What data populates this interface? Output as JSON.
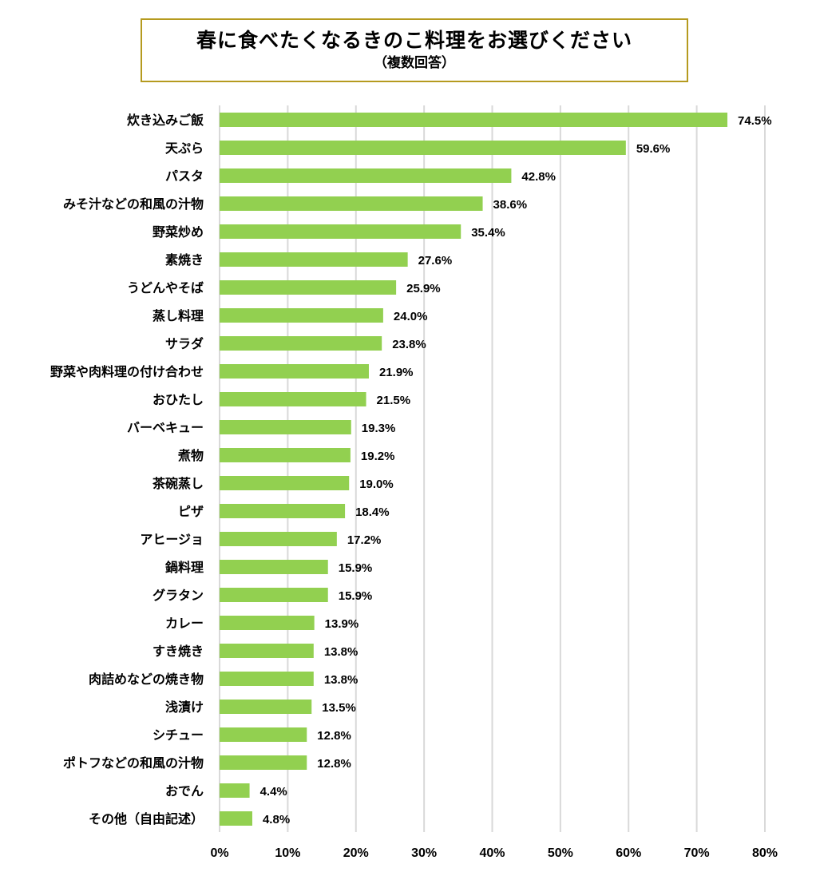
{
  "title": "春に食べたくなるきのこ料理をお選びください",
  "subtitle": "（複数回答）",
  "colors": {
    "bar": "#92d050",
    "grid": "#d9d9d9",
    "title_border": "#b59a1f"
  },
  "chart_data": {
    "type": "bar",
    "orientation": "horizontal",
    "categories": [
      "炊き込みご飯",
      "天ぷら",
      "パスタ",
      "みそ汁などの和風の汁物",
      "野菜炒め",
      "素焼き",
      "うどんやそば",
      "蒸し料理",
      "サラダ",
      "野菜や肉料理の付け合わせ",
      "おひたし",
      "バーベキュー",
      "煮物",
      "茶碗蒸し",
      "ピザ",
      "アヒージョ",
      "鍋料理",
      "グラタン",
      "カレー",
      "すき焼き",
      "肉詰めなどの焼き物",
      "浅漬け",
      "シチュー",
      "ポトフなどの和風の汁物",
      "おでん",
      "その他（自由記述）"
    ],
    "values": [
      74.5,
      59.6,
      42.8,
      38.6,
      35.4,
      27.6,
      25.9,
      24.0,
      23.8,
      21.9,
      21.5,
      19.3,
      19.2,
      19.0,
      18.4,
      17.2,
      15.9,
      15.9,
      13.9,
      13.8,
      13.8,
      13.5,
      12.8,
      12.8,
      4.4,
      4.8
    ],
    "value_labels": [
      "74.5%",
      "59.6%",
      "42.8%",
      "38.6%",
      "35.4%",
      "27.6%",
      "25.9%",
      "24.0%",
      "23.8%",
      "21.9%",
      "21.5%",
      "19.3%",
      "19.2%",
      "19.0%",
      "18.4%",
      "17.2%",
      "15.9%",
      "15.9%",
      "13.9%",
      "13.8%",
      "13.8%",
      "13.5%",
      "12.8%",
      "12.8%",
      "4.4%",
      "4.8%"
    ],
    "xlim": [
      0,
      80
    ],
    "x_ticks": [
      0,
      10,
      20,
      30,
      40,
      50,
      60,
      70,
      80
    ],
    "x_tick_labels": [
      "0%",
      "10%",
      "20%",
      "30%",
      "40%",
      "50%",
      "60%",
      "70%",
      "80%"
    ],
    "grid": true,
    "legend": "none"
  }
}
